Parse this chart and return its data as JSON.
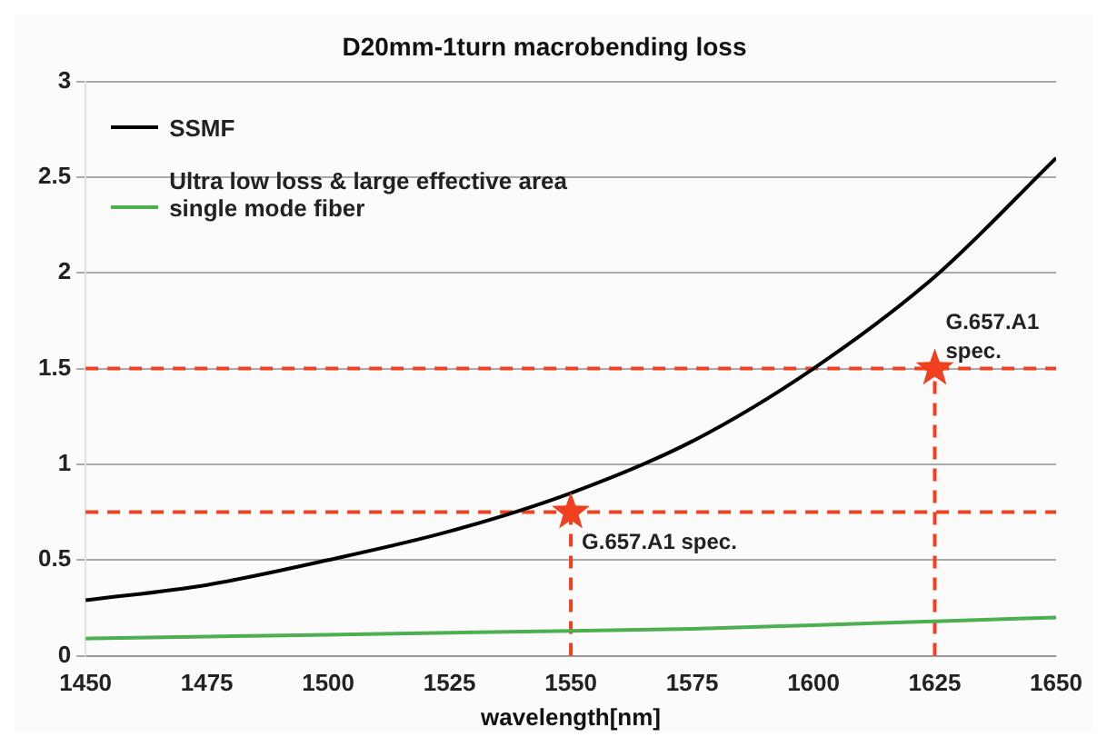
{
  "chart_data": {
    "type": "line",
    "title": "D20mm-1turn macrobending loss",
    "xlabel": "wavelength[nm]",
    "x": [
      1450,
      1475,
      1500,
      1525,
      1550,
      1575,
      1600,
      1625,
      1650
    ],
    "series": [
      {
        "name": "SSMF",
        "color": "#000000",
        "values": [
          0.29,
          0.37,
          0.5,
          0.65,
          0.85,
          1.12,
          1.5,
          1.98,
          2.6
        ]
      },
      {
        "name": "Ultra low loss & large effective area single mode fiber",
        "color": "#4caf50",
        "values": [
          0.09,
          0.1,
          0.11,
          0.12,
          0.13,
          0.14,
          0.16,
          0.18,
          0.2
        ]
      },
      {
        "type": "scatter",
        "marker": "star",
        "color": "#f04020",
        "x": [
          1550,
          1625
        ],
        "values": [
          0.75,
          1.5
        ]
      }
    ],
    "xlim": [
      1450,
      1650
    ],
    "xticks": [
      1450,
      1475,
      1500,
      1525,
      1550,
      1575,
      1600,
      1625,
      1650
    ],
    "ylim": [
      0,
      3
    ],
    "yticks": [
      0,
      0.5,
      1,
      1.5,
      2,
      2.5,
      3
    ],
    "grid": "y",
    "legend": "top left",
    "marker": "none",
    "line_style": "solid",
    "ref_lines": [
      {
        "axis": "y",
        "value": 0.75,
        "color": "#f04020",
        "line_style": "dashed"
      },
      {
        "axis": "y",
        "value": 1.5,
        "color": "#f04020",
        "line_style": "dashed"
      },
      {
        "axis": "x",
        "value": 1550,
        "color": "#f04020",
        "line_style": "dashed"
      },
      {
        "axis": "x",
        "value": 1625,
        "color": "#f04020",
        "line_style": "dashed"
      }
    ],
    "annotations": [
      {
        "text": "G.657.A1 spec.",
        "x": 1550,
        "y": 0.75
      },
      {
        "text": "G.657.A1\nspec.",
        "x": 1625,
        "y": 1.5
      }
    ]
  }
}
